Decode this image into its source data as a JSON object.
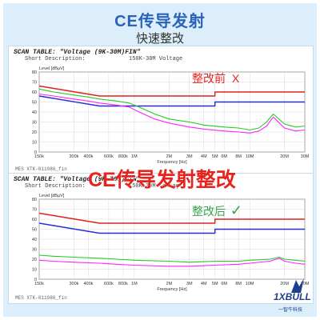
{
  "title": "CE传导发射",
  "subtitle": "快速整改",
  "overlay_title": "CE传导发射整改",
  "annotation_before": "整改前",
  "annotation_before_mark": "X",
  "annotation_after": "整改后",
  "annotation_after_mark": "✓",
  "brand": "1XBULL",
  "brand_cn": "一智牛科技",
  "colors": {
    "limit_qp": "#e02020",
    "limit_av": "#2a2ae0",
    "trace_peak": "#22cc22",
    "trace_avg": "#ff22ff",
    "title": "#2a63b8"
  },
  "chart_data": [
    {
      "type": "line",
      "panel": "before",
      "scan_table": "SCAN TABLE: \"Voltage (9K-30M)FIN\"",
      "short_description_label": "Short Description:",
      "short_description_value": "150K-30M Voltage",
      "footer": "MES XTK-011986_fin",
      "ylabel": "Level [dBµV]",
      "xlabel": "Frequency [Hz]",
      "xscale": "log",
      "xlim": [
        150000,
        30000000
      ],
      "ylim": [
        0,
        80
      ],
      "yticks": [
        0,
        10,
        20,
        30,
        40,
        50,
        60,
        70,
        80
      ],
      "xtick_labels": [
        "150k",
        "300k",
        "400k",
        "600k",
        "800k",
        "1M",
        "2M",
        "3M",
        "4M",
        "5M",
        "6M",
        "8M",
        "10M",
        "20M",
        "30M"
      ],
      "xtick_values": [
        150000,
        300000,
        400000,
        600000,
        800000,
        1000000,
        2000000,
        3000000,
        4000000,
        5000000,
        6000000,
        8000000,
        10000000,
        20000000,
        30000000
      ],
      "series": [
        {
          "key": "limit_qp",
          "x": [
            150000,
            500000,
            500000,
            5000000,
            5000000,
            30000000
          ],
          "y": [
            66,
            56,
            56,
            56,
            60,
            60
          ]
        },
        {
          "key": "limit_av",
          "x": [
            150000,
            500000,
            500000,
            5000000,
            5000000,
            30000000
          ],
          "y": [
            56,
            46,
            46,
            46,
            50,
            50
          ]
        },
        {
          "key": "trace_peak",
          "x": [
            150000,
            200000,
            300000,
            400000,
            500000,
            700000,
            900000,
            1100000,
            1500000,
            2000000,
            3000000,
            4000000,
            6000000,
            8000000,
            10000000,
            12000000,
            14000000,
            16000000,
            20000000,
            25000000,
            30000000
          ],
          "y": [
            63,
            60,
            57,
            55,
            53,
            51,
            49,
            45,
            38,
            33,
            30,
            27,
            25,
            24,
            22,
            24,
            30,
            38,
            28,
            25,
            26
          ]
        },
        {
          "key": "trace_avg",
          "x": [
            150000,
            200000,
            300000,
            400000,
            500000,
            700000,
            900000,
            1100000,
            1500000,
            2000000,
            3000000,
            4000000,
            6000000,
            8000000,
            10000000,
            12000000,
            14000000,
            16000000,
            20000000,
            25000000,
            30000000
          ],
          "y": [
            58,
            56,
            53,
            51,
            49,
            47,
            45,
            40,
            33,
            29,
            25,
            23,
            21,
            20,
            19,
            21,
            26,
            35,
            24,
            21,
            22
          ]
        }
      ]
    },
    {
      "type": "line",
      "panel": "after",
      "scan_table": "SCAN TABLE: \"Voltage (9K-30M)FIN\"",
      "short_description_label": "Short Description:",
      "short_description_value": "150K-30M Voltage",
      "footer": "MES XTK-011986_fin",
      "ylabel": "Level [dBµV]",
      "xlabel": "Frequency [Hz]",
      "xscale": "log",
      "xlim": [
        150000,
        30000000
      ],
      "ylim": [
        0,
        80
      ],
      "yticks": [
        0,
        10,
        20,
        30,
        40,
        50,
        60,
        70,
        80
      ],
      "xtick_labels": [
        "150k",
        "300k",
        "400k",
        "600k",
        "800k",
        "1M",
        "2M",
        "3M",
        "4M",
        "5M",
        "6M",
        "8M",
        "10M",
        "20M",
        "30M"
      ],
      "xtick_values": [
        150000,
        300000,
        400000,
        600000,
        800000,
        1000000,
        2000000,
        3000000,
        4000000,
        5000000,
        6000000,
        8000000,
        10000000,
        20000000,
        30000000
      ],
      "series": [
        {
          "key": "limit_qp",
          "x": [
            150000,
            500000,
            500000,
            5000000,
            5000000,
            30000000
          ],
          "y": [
            66,
            56,
            56,
            56,
            60,
            60
          ]
        },
        {
          "key": "limit_av",
          "x": [
            150000,
            500000,
            500000,
            5000000,
            5000000,
            30000000
          ],
          "y": [
            56,
            46,
            46,
            46,
            50,
            50
          ]
        },
        {
          "key": "trace_peak",
          "x": [
            150000,
            200000,
            300000,
            500000,
            700000,
            1000000,
            2000000,
            3000000,
            5000000,
            8000000,
            10000000,
            15000000,
            18000000,
            20000000,
            25000000,
            30000000
          ],
          "y": [
            24,
            23,
            22,
            21,
            20,
            19,
            18,
            17,
            18,
            18,
            19,
            20,
            22,
            20,
            19,
            18
          ]
        },
        {
          "key": "trace_avg",
          "x": [
            150000,
            200000,
            300000,
            500000,
            700000,
            1000000,
            2000000,
            3000000,
            5000000,
            8000000,
            10000000,
            15000000,
            18000000,
            20000000,
            25000000,
            30000000
          ],
          "y": [
            19,
            18,
            17,
            16,
            15,
            14,
            13,
            13,
            14,
            15,
            16,
            18,
            21,
            18,
            16,
            15
          ]
        }
      ]
    }
  ]
}
